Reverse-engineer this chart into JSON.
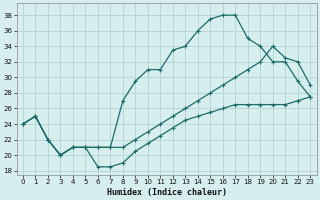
{
  "xlabel": "Humidex (Indice chaleur)",
  "xlim": [
    -0.5,
    23.5
  ],
  "ylim": [
    17.5,
    39.5
  ],
  "yticks": [
    18,
    20,
    22,
    24,
    26,
    28,
    30,
    32,
    34,
    36,
    38
  ],
  "xticks": [
    0,
    1,
    2,
    3,
    4,
    5,
    6,
    7,
    8,
    9,
    10,
    11,
    12,
    13,
    14,
    15,
    16,
    17,
    18,
    19,
    20,
    21,
    22,
    23
  ],
  "bg_color": "#d6eeee",
  "line_color": "#1e6b6b",
  "grid_color": "#b8d8d8",
  "line1_y": [
    24,
    25,
    22,
    20,
    21,
    21,
    21,
    21,
    27,
    29.5,
    31,
    31,
    33.5,
    34,
    36,
    37.5,
    38,
    38,
    35,
    34,
    32,
    32,
    29.5,
    27.5
  ],
  "line2_y": [
    24,
    25,
    22,
    20,
    21,
    21,
    21,
    21,
    21,
    22,
    23,
    24,
    25,
    26,
    27,
    28,
    29,
    30,
    31,
    32,
    34,
    32.5,
    32,
    29
  ],
  "line3_y": [
    24,
    25,
    22,
    20,
    21,
    21,
    18.5,
    18.5,
    19,
    20.5,
    21.5,
    22.5,
    23.5,
    24.5,
    25,
    25.5,
    26,
    26.5,
    26.5,
    26.5,
    26.5,
    26.5,
    27,
    27.5
  ]
}
